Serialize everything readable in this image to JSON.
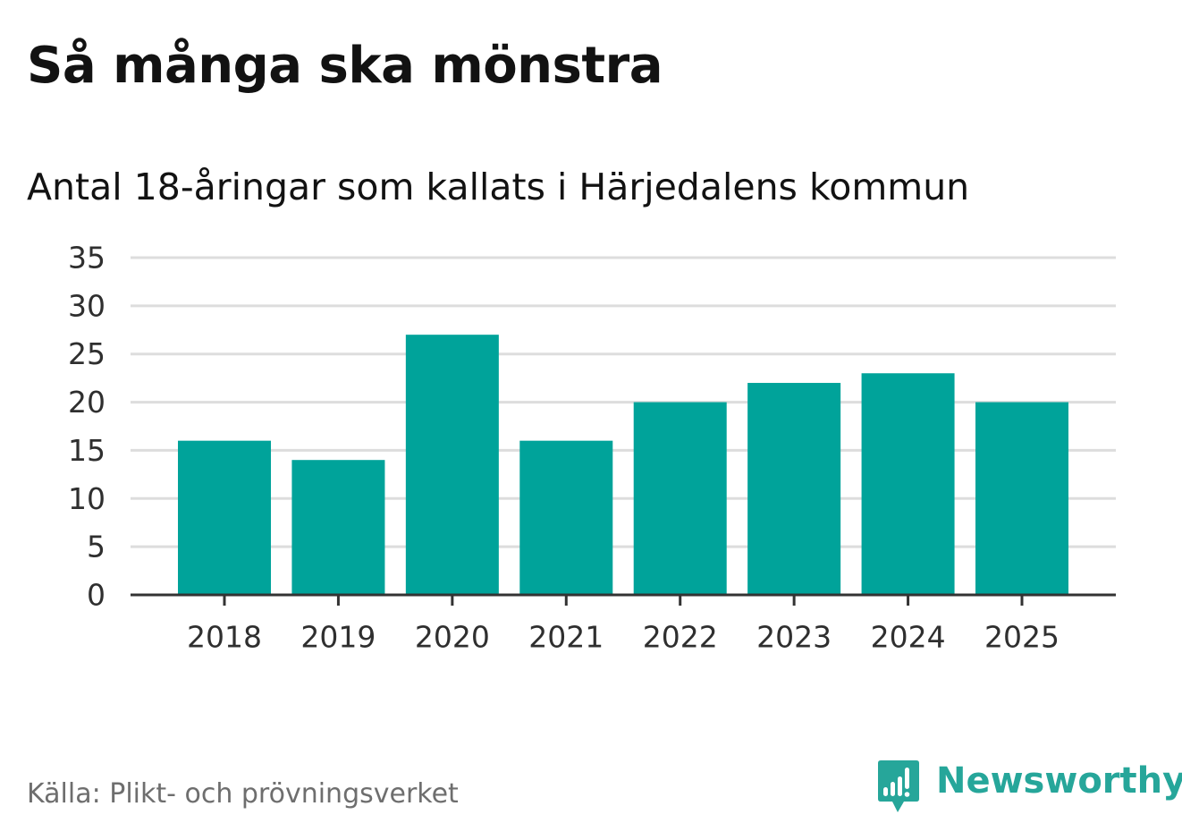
{
  "header": {
    "title": "Så många ska mönstra",
    "subtitle": "Antal 18-åringar som kallats i Härjedalens kommun"
  },
  "footer": {
    "source": "Källa: Plikt- och prövningsverket",
    "brand_name": "Newsworthy",
    "brand_icon": "newsworthy-logo-icon"
  },
  "colors": {
    "bar": "#00a39a",
    "grid": "#dddddd",
    "axis": "#333333",
    "text": "#121212",
    "tick_text": "#2f2f2f",
    "source_text": "#6e6e6e",
    "brand": "#26a69a"
  },
  "chart_data": {
    "type": "bar",
    "title": "Så många ska mönstra",
    "subtitle": "Antal 18-åringar som kallats i Härjedalens kommun",
    "xlabel": "",
    "ylabel": "",
    "categories": [
      "2018",
      "2019",
      "2020",
      "2021",
      "2022",
      "2023",
      "2024",
      "2025"
    ],
    "values": [
      16,
      14,
      27,
      16,
      20,
      22,
      23,
      20
    ],
    "ylim": [
      0,
      35
    ],
    "yticks": [
      0,
      5,
      10,
      15,
      20,
      25,
      30,
      35
    ],
    "grid": true,
    "legend": "none"
  }
}
